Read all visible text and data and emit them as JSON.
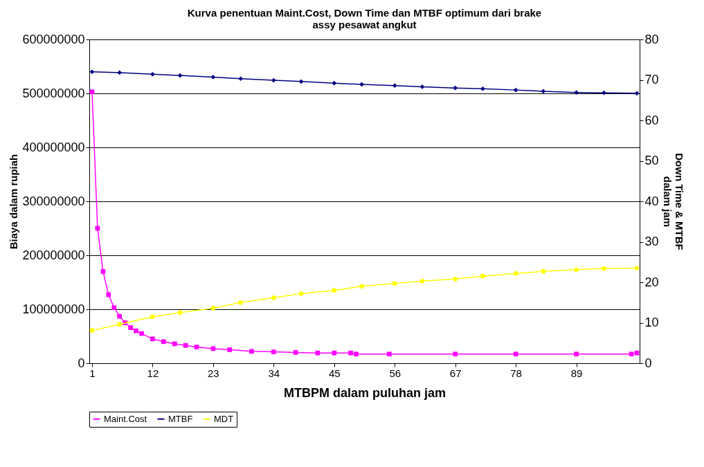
{
  "chart_data": {
    "type": "line",
    "title": "Kurva penentuan Maint.Cost, Down Time dan MTBF optimum dari brake\nassy pesawat angkut",
    "xlabel": "MTBPM dalam puluhan jam",
    "ylabel": "Biaya dalam rupiah",
    "y2label": "Down Time & MTBF\ndalam jam",
    "xlim": [
      0.5,
      100.5
    ],
    "xticks": [
      1,
      12,
      23,
      34,
      45,
      56,
      67,
      78,
      89
    ],
    "ylim": [
      0,
      600000000
    ],
    "yticks": [
      0,
      100000000,
      200000000,
      300000000,
      400000000,
      500000000,
      600000000
    ],
    "y2lim": [
      0,
      80
    ],
    "y2ticks": [
      0,
      10,
      20,
      30,
      40,
      50,
      60,
      70,
      80
    ],
    "grid": "y",
    "legend": "bottom",
    "series": [
      {
        "name": "Maint.Cost",
        "color": "#ff00ff",
        "marker": "square",
        "x": [
          1,
          2,
          3,
          4,
          5,
          6,
          7,
          8,
          9,
          10,
          12,
          14,
          16,
          18,
          20,
          23,
          26,
          30,
          34,
          38,
          42,
          45,
          48,
          49,
          55,
          67,
          78,
          89,
          99,
          100
        ],
        "values": [
          503000000,
          250000000,
          170000000,
          127000000,
          103000000,
          87000000,
          75000000,
          66000000,
          60000000,
          55000000,
          45000000,
          40000000,
          36000000,
          33000000,
          30000000,
          27000000,
          25000000,
          22000000,
          21000000,
          20000000,
          19000000,
          19000000,
          19000000,
          17000000,
          17000000,
          17000000,
          17000000,
          17000000,
          17000000,
          19000000
        ]
      },
      {
        "name": "MTBF",
        "color": "#000080",
        "marker": "diamond",
        "axis": "y2",
        "x": [
          1,
          6,
          12,
          17,
          23,
          28,
          34,
          39,
          45,
          50,
          56,
          61,
          67,
          72,
          78,
          83,
          89,
          94,
          100
        ],
        "values": [
          72,
          71.8,
          71.4,
          71.1,
          70.7,
          70.3,
          69.9,
          69.6,
          69.2,
          68.9,
          68.6,
          68.3,
          68,
          67.8,
          67.5,
          67.2,
          66.9,
          66.8,
          66.7
        ]
      },
      {
        "name": "MDT",
        "color": "#ffff00",
        "marker": "circle",
        "axis": "y2",
        "x": [
          1,
          6,
          12,
          17,
          23,
          28,
          34,
          39,
          45,
          50,
          56,
          61,
          67,
          72,
          78,
          83,
          89,
          94,
          100
        ],
        "values": [
          8.1,
          9.6,
          11.5,
          12.5,
          13.6,
          15,
          16.2,
          17.2,
          18,
          19,
          19.7,
          20.3,
          20.8,
          21.5,
          22.2,
          22.7,
          23.1,
          23.4,
          23.5
        ]
      }
    ]
  }
}
